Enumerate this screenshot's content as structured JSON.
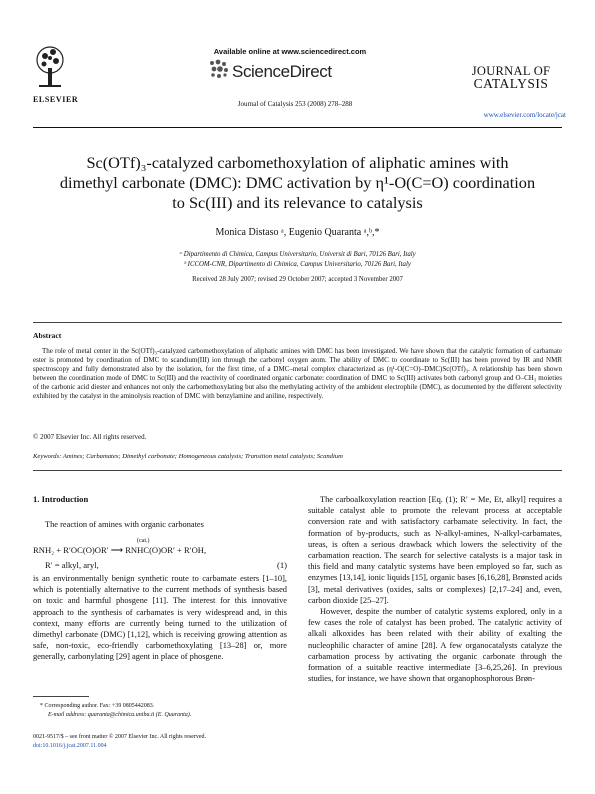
{
  "header": {
    "available_online": "Available online at www.sciencedirect.com",
    "sciencedirect": "ScienceDirect",
    "journal_ref": "Journal of Catalysis 253 (2008) 278–288",
    "elsevier": "ELSEVIER",
    "journal_name_line1": "JOURNAL OF",
    "journal_name_line2": "CATALYSIS",
    "journal_url": "www.elsevier.com/locate/jcat"
  },
  "title": {
    "line1": "Sc(OTf)₃-catalyzed carbomethoxylation of aliphatic amines with",
    "line2": "dimethyl carbonate (DMC): DMC activation by η¹-O(C=O) coordination",
    "line3": "to Sc(III) and its relevance to catalysis"
  },
  "authors": "Monica Distaso ᵃ, Eugenio Quaranta ᵃ,ᵇ,*",
  "affiliations": {
    "a": "ᵃ Dipartimento di Chimica, Campus Universitario, Universit  di Bari, 70126 Bari, Italy",
    "b": "ᵇ ICCOM-CNR, Dipartimento di Chimica, Campus Universitario, 70126 Bari, Italy"
  },
  "received": "Received 28 July 2007; revised 29 October 2007; accepted 3 November 2007",
  "abstract": {
    "heading": "Abstract",
    "text": "The role of metal center in the Sc(OTf)₃-catalyzed carbomethoxylation of aliphatic amines with DMC has been investigated. We have shown that the catalytic formation of carbamate ester is promoted by coordination of DMC to scandium(III) ion through the carbonyl oxygen atom. The ability of DMC to coordinate to Sc(III) has been proved by IR and NMR spectroscopy and fully demonstrated also by the isolation, for the first time, of a DMC–metal complex characterized as (η¹-O(C=O)–DMC)Sc(OTf)₃. A relationship has been shown between the coordination mode of DMC to Sc(III) and the reactivity of coordinated organic carbonate: coordination of DMC to Sc(III) activates both carbonyl group and O–CH₃ moieties of the carbonic acid diester and enhances not only the carbomethoxylating but also the methylating activity of the ambident electrophile (DMC), as documented by the different selectivity exhibited by the catalyst in the aminolysis reaction of DMC with benzylamine and aniline, respectively.",
    "copyright": "© 2007 Elsevier Inc. All rights reserved.",
    "keywords": "Keywords: Amines; Carbamates; Dimethyl carbonate; Homogeneous catalysis; Transition metal catalysts; Scandium"
  },
  "left_col": {
    "section": "1. Introduction",
    "intro": "The reaction of amines with organic carbonates",
    "eq_line1": "RNH₂ + R′OC(O)OR′ ⟶ RNHC(O)OR′ + R′OH,",
    "eq_cat": "(cat.)",
    "eq_line2": "R′ = alkyl, aryl,",
    "eq_num": "(1)",
    "para": "is an environmentally benign synthetic route to carbamate esters [1–10], which is potentially alternative to the current methods of synthesis based on toxic and harmful phosgene [11]. The interest for this innovative approach to the synthesis of carbamates is very widespread and, in this context, many efforts are currently being turned to the utilization of dimethyl carbonate (DMC) [1,12], which is receiving growing attention as safe, non-toxic, eco-friendly carbomethoxylating [13–28] or, more generally, carbonylating [29] agent in place of phosgene.",
    "footnote_star": "* Corresponding author. Fax: +39 0805442083.",
    "footnote_email": "E-mail address: quaranta@chimica.uniba.it (E. Quaranta).",
    "issn": "0021-9517/$ – see front matter © 2007 Elsevier Inc. All rights reserved.",
    "doi": "doi:10.1016/j.jcat.2007.11.004"
  },
  "right_col": {
    "para1": "The carboalkoxylation reaction [Eq. (1); R′ = Me, Et, alkyl] requires a suitable catalyst able to promote the relevant process at acceptable conversion rate and with satisfactory carbamate selectivity. In fact, the formation of by-products, such as N-alkyl-amines, N-alkyl-carbamates, ureas, is often a serious drawback which lowers the selectivity of the carbamation reaction. The search for selective catalysts is a major task in this field and many catalytic systems have been employed so far, such as enzymes [13,14], ionic liquids [15], organic bases [6,16,28], Brønsted acids [3], metal derivatives (oxides, salts or complexes) [2,17–24] and, even, carbon dioxide [25–27].",
    "para2": "However, despite the number of catalytic systems explored, only in a few cases the role of catalyst has been probed. The catalytic activity of alkali alkoxides has been related with their ability of exalting the nucleophilic character of amine [28]. A few organocatalysts catalyze the carbamation process by activating the organic carbonate through the formation of a suitable reactive intermediate [3–6,25,26]. In previous studies, for instance, we have shown that organophosphorous Brøn-"
  }
}
